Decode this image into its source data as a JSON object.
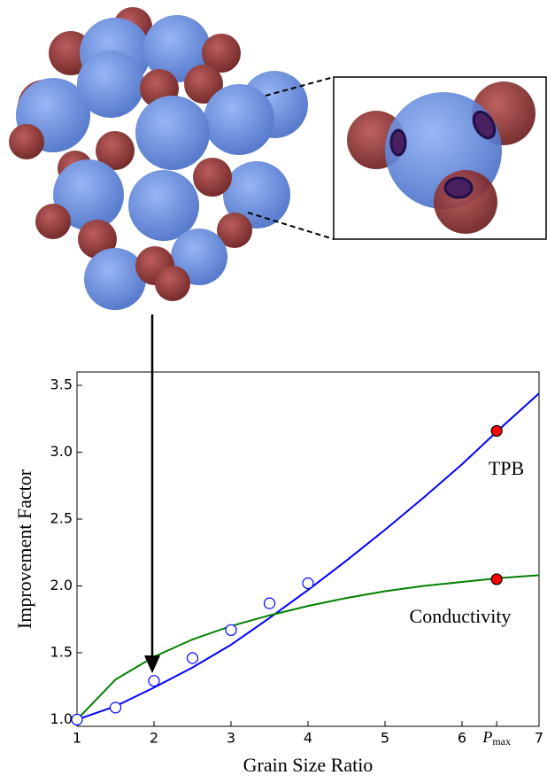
{
  "chart_data": {
    "type": "line",
    "xlabel": "Grain Size Ratio",
    "ylabel": "Improvement Factor",
    "xlim": [
      1,
      7
    ],
    "ylim": [
      0.95,
      3.6
    ],
    "xticks": [
      1,
      2,
      3,
      4,
      5,
      6,
      {
        "value": 6.45,
        "label": "Pmax"
      },
      7
    ],
    "yticks": [
      {
        "value": 1,
        "label": "1.0"
      },
      1.5,
      {
        "value": 2,
        "label": "2.0"
      },
      2.5,
      {
        "value": 3,
        "label": "3.0"
      },
      3.5
    ],
    "x": [
      1,
      1.5,
      2,
      2.5,
      3,
      3.5,
      4,
      4.5,
      5,
      5.5,
      6,
      6.5,
      7
    ],
    "series": [
      {
        "name": "TPB",
        "color": "#0000ff",
        "values": [
          1.0,
          1.1,
          1.24,
          1.39,
          1.56,
          1.76,
          1.97,
          2.19,
          2.42,
          2.66,
          2.91,
          3.18,
          3.44
        ]
      },
      {
        "name": "Conductivity",
        "color": "#008000",
        "values": [
          1.0,
          1.3,
          1.47,
          1.6,
          1.7,
          1.78,
          1.85,
          1.91,
          1.96,
          2.0,
          2.03,
          2.06,
          2.08
        ]
      }
    ],
    "points": [
      {
        "color": "#0000ff",
        "filled": false,
        "x": [
          1,
          1.5,
          2,
          2.5,
          3,
          3.5,
          4
        ],
        "values": [
          1.0,
          1.09,
          1.29,
          1.46,
          1.67,
          1.87,
          2.02
        ]
      },
      {
        "color": "#ff0000",
        "filled": true,
        "x": [
          6.45,
          6.45
        ],
        "values": [
          3.16,
          2.05
        ]
      }
    ]
  }
}
